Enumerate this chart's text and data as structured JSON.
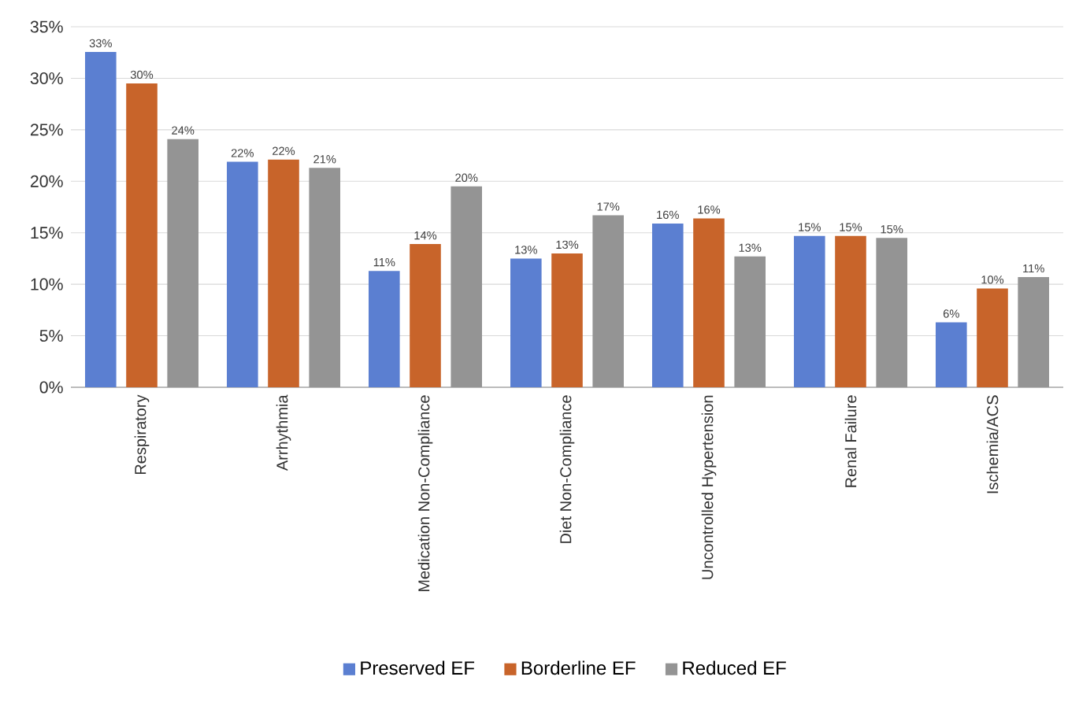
{
  "chart_data": {
    "type": "bar",
    "categories": [
      "Respiratory",
      "Arrhythmia",
      "Medication Non-Compliance",
      "Diet Non-Compliance",
      "Uncontrolled Hypertension",
      "Renal Failure",
      "Ischemia/ACS"
    ],
    "series": [
      {
        "name": "Preserved EF",
        "color": "#5b7fd1",
        "values": [
          32.55,
          21.9,
          11.3,
          12.5,
          15.9,
          14.7,
          6.3
        ],
        "value_labels": [
          "33%",
          "22%",
          "11%",
          "13%",
          "16%",
          "15%",
          "6%"
        ]
      },
      {
        "name": "Borderline EF",
        "color": "#c8642a",
        "values": [
          29.5,
          22.1,
          13.9,
          13.0,
          16.4,
          14.7,
          9.6
        ],
        "value_labels": [
          "30%",
          "22%",
          "14%",
          "13%",
          "16%",
          "15%",
          "10%"
        ]
      },
      {
        "name": "Reduced EF",
        "color": "#949494",
        "values": [
          24.1,
          21.3,
          19.5,
          16.7,
          12.7,
          14.5,
          10.7
        ],
        "value_labels": [
          "24%",
          "21%",
          "20%",
          "17%",
          "13%",
          "15%",
          "11%"
        ]
      }
    ],
    "ylim": [
      0,
      35
    ],
    "yticks": [
      {
        "value": 0,
        "label": "0%"
      },
      {
        "value": 5,
        "label": "5%"
      },
      {
        "value": 10,
        "label": "10%"
      },
      {
        "value": 15,
        "label": "15%"
      },
      {
        "value": 20,
        "label": "20%"
      },
      {
        "value": 25,
        "label": "25%"
      },
      {
        "value": 30,
        "label": "30%"
      },
      {
        "value": 35,
        "label": "35%"
      }
    ],
    "grid": "y",
    "legend": "bottom"
  }
}
